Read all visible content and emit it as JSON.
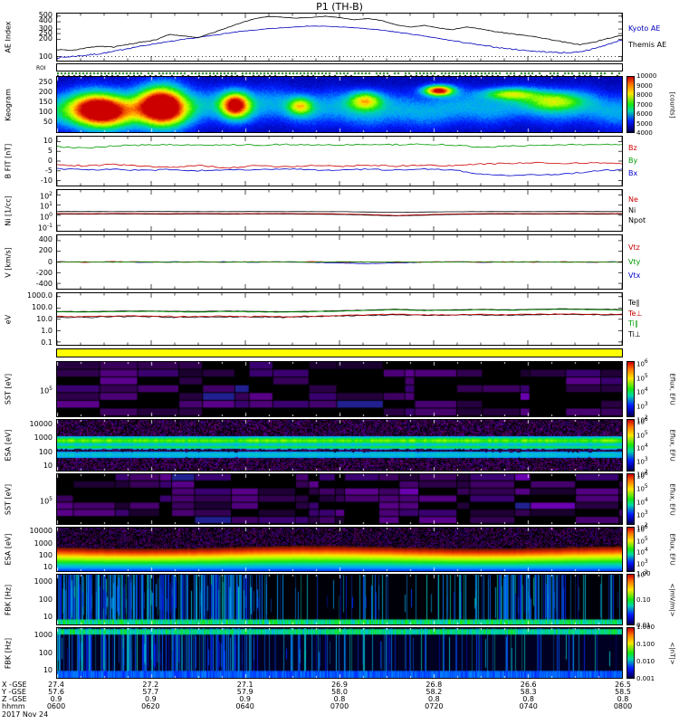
{
  "title": "P1 (TH-B)",
  "date_label": "2017 Nov 24",
  "x_axis": {
    "tick_labels": [
      "0600",
      "0620",
      "0640",
      "0700",
      "0720",
      "0740",
      "0800"
    ]
  },
  "ephemeris": {
    "rows": [
      {
        "label": "X -GSE",
        "values": [
          "27.4",
          "27.2",
          "27.1",
          "26.9",
          "26.8",
          "26.6",
          "26.5"
        ]
      },
      {
        "label": "Y -GSE",
        "values": [
          "57.6",
          "57.7",
          "57.9",
          "58.0",
          "58.2",
          "58.3",
          "58.5"
        ]
      },
      {
        "label": "Z -GSE",
        "values": [
          "0.9",
          "0.9",
          "0.9",
          "0.8",
          "0.8",
          "0.8",
          "0.8"
        ]
      },
      {
        "label": "hhmm",
        "values": [
          "0600",
          "0620",
          "0640",
          "0700",
          "0720",
          "0740",
          "0800"
        ]
      }
    ]
  },
  "chart_data": [
    {
      "id": "ae_index",
      "type": "line",
      "ylabel": "AE Index",
      "scale": "log",
      "ylim": [
        85,
        555
      ],
      "jitter": 6,
      "ref_lines": [
        100
      ],
      "yticks": [
        {
          "label": "500",
          "f": 0.055
        },
        {
          "label": "400",
          "f": 0.174
        },
        {
          "label": "300",
          "f": 0.328
        },
        {
          "label": "250",
          "f": 0.425
        },
        {
          "label": "200",
          "f": 0.544
        },
        {
          "label": "100",
          "f": 0.913
        }
      ],
      "right_labels": [
        {
          "text": "Kyoto AE",
          "color": "#0000bb"
        },
        {
          "text": "Themis AE",
          "color": "#000000"
        }
      ],
      "series": [
        {
          "name": "Kyoto AE",
          "color": "#0000bb",
          "values": [
            95,
            100,
            105,
            112,
            122,
            138,
            152,
            168,
            182,
            198,
            214,
            232,
            252,
            272,
            288,
            303,
            315,
            328,
            338,
            334,
            326,
            316,
            302,
            286,
            266,
            246,
            226,
            206,
            188,
            172,
            157,
            146,
            136,
            129,
            123,
            119,
            116,
            121,
            136,
            162,
            195
          ]
        },
        {
          "name": "Themis AE",
          "color": "#000000",
          "values": [
            132,
            126,
            141,
            151,
            146,
            162,
            177,
            196,
            242,
            226,
            211,
            256,
            312,
            382,
            452,
            496,
            481,
            462,
            476,
            500,
            471,
            432,
            456,
            421,
            352,
            322,
            346,
            312,
            291,
            326,
            301,
            271,
            251,
            236,
            216,
            196,
            176,
            161,
            176,
            206,
            231
          ]
        }
      ]
    },
    {
      "id": "roi",
      "type": "tick_strip",
      "ylabel": "ROI"
    },
    {
      "id": "keogram",
      "type": "spectrogram",
      "ylabel": "Keogram",
      "yticks": [
        {
          "label": "250",
          "f": 0.11
        },
        {
          "label": "200",
          "f": 0.285
        },
        {
          "label": "150",
          "f": 0.46
        },
        {
          "label": "100",
          "f": 0.64
        },
        {
          "label": "50",
          "f": 0.815
        }
      ],
      "colorbar": {
        "ticks": [
          "10000",
          "9000",
          "8000",
          "7000",
          "6000",
          "5000",
          "4000"
        ],
        "label": "[counts]"
      },
      "features": {
        "band": {
          "center": 0.56,
          "sigma": 0.3,
          "strength": 0.26
        },
        "blobs": [
          {
            "x": 0.075,
            "y": 0.6,
            "rx": 0.05,
            "ry": 0.3,
            "i": 0.95
          },
          {
            "x": 0.185,
            "y": 0.52,
            "rx": 0.04,
            "ry": 0.34,
            "i": 1.05
          },
          {
            "x": 0.315,
            "y": 0.5,
            "rx": 0.024,
            "ry": 0.22,
            "i": 0.8
          },
          {
            "x": 0.43,
            "y": 0.52,
            "rx": 0.02,
            "ry": 0.15,
            "i": 0.45
          },
          {
            "x": 0.545,
            "y": 0.42,
            "rx": 0.028,
            "ry": 0.16,
            "i": 0.55
          },
          {
            "x": 0.675,
            "y": 0.24,
            "rx": 0.025,
            "ry": 0.09,
            "i": 0.9
          },
          {
            "x": 0.8,
            "y": 0.3,
            "rx": 0.045,
            "ry": 0.1,
            "i": 0.45
          },
          {
            "x": 0.88,
            "y": 0.42,
            "rx": 0.045,
            "ry": 0.16,
            "i": 0.4
          }
        ]
      }
    },
    {
      "id": "b_fit",
      "type": "line",
      "ylabel": "B FIT [nT]",
      "scale": "linear",
      "ylim": [
        -12.5,
        12.5
      ],
      "jitter": 0.7,
      "yticks": [
        {
          "label": "10",
          "f": 0.1
        },
        {
          "label": "5",
          "f": 0.3
        },
        {
          "label": "0",
          "f": 0.5
        },
        {
          "label": "-5",
          "f": 0.7
        },
        {
          "label": "-10",
          "f": 0.9
        }
      ],
      "right_labels": [
        {
          "text": "Bz",
          "color": "#cc0000"
        },
        {
          "text": "By",
          "color": "#009900"
        },
        {
          "text": "Bx",
          "color": "#0000cc"
        }
      ],
      "series": [
        {
          "name": "Bx",
          "color": "#0000cc",
          "values": [
            -3.8,
            -4.6,
            -4.1,
            -4.8,
            -4.3,
            -4.9,
            -4.2,
            -4.6,
            -4.1,
            -4.4,
            -4.7,
            -4.2,
            -4.5,
            -4.1,
            -4.4,
            -6.6,
            -7.3,
            -7.0,
            -6.6,
            -5.2,
            -4.2
          ]
        },
        {
          "name": "Bz",
          "color": "#cc0000",
          "values": [
            -2.0,
            -2.4,
            -1.7,
            -2.6,
            -3.2,
            -2.2,
            -3.5,
            -2.4,
            -3.0,
            -2.3,
            -2.7,
            -2.1,
            -2.6,
            -1.9,
            -2.4,
            -1.5,
            -1.1,
            -0.8,
            -1.2,
            -0.9,
            -1.2
          ]
        },
        {
          "name": "By",
          "color": "#009900",
          "values": [
            7.4,
            6.6,
            7.8,
            8.2,
            8.4,
            8.1,
            8.4,
            8.2,
            8.5,
            8.3,
            8.2,
            8.5,
            8.4,
            8.6,
            8.3,
            7.0,
            7.6,
            8.1,
            8.3,
            8.5,
            8.3
          ]
        }
      ]
    },
    {
      "id": "density",
      "type": "line",
      "ylabel": "Ni [1/cc]",
      "scale": "log",
      "ylim": [
        0.03,
        300
      ],
      "jitter": 0.06,
      "yticks": [
        {
          "label": "10^2",
          "f": 0.119
        },
        {
          "label": "10^1",
          "f": 0.369
        },
        {
          "label": "10^0",
          "f": 0.619
        },
        {
          "label": "10^-1",
          "f": 0.869
        }
      ],
      "right_labels": [
        {
          "text": "Ne",
          "color": "#cc0000"
        },
        {
          "text": "Ni",
          "color": "#000000"
        },
        {
          "text": "Npot",
          "color": "#000000"
        }
      ],
      "series": [
        {
          "name": "Npot",
          "color": "#000000",
          "values": [
            2.3,
            2.32,
            2.28,
            2.31,
            2.33,
            2.3,
            2.29,
            2.32,
            2.3,
            2.28,
            2.25,
            2.1,
            1.95,
            2.08,
            2.22,
            2.29,
            2.31,
            2.29,
            2.32,
            2.3,
            2.31
          ]
        },
        {
          "name": "Ni",
          "color": "#000000",
          "values": [
            1.3,
            1.28,
            1.33,
            1.31,
            1.29,
            1.33,
            1.3,
            1.31,
            1.34,
            1.28,
            1.22,
            1.05,
            0.86,
            1.02,
            1.2,
            1.28,
            1.31,
            1.28,
            1.32,
            1.29,
            1.31
          ]
        },
        {
          "name": "Ne",
          "color": "#cc0000",
          "values": [
            1.46,
            1.43,
            1.49,
            1.47,
            1.45,
            1.49,
            1.46,
            1.47,
            1.5,
            1.43,
            1.37,
            1.18,
            0.97,
            1.15,
            1.35,
            1.43,
            1.47,
            1.43,
            1.48,
            1.45,
            1.47
          ]
        }
      ]
    },
    {
      "id": "velocity",
      "type": "line",
      "ylabel": "V [km/s]",
      "scale": "linear",
      "ylim": [
        -500,
        500
      ],
      "jitter": 9,
      "ref_lines": [
        0
      ],
      "yticks": [
        {
          "label": "400",
          "f": 0.1
        },
        {
          "label": "200",
          "f": 0.3
        },
        {
          "label": "0",
          "f": 0.5
        },
        {
          "label": "-200",
          "f": 0.7
        },
        {
          "label": "-400",
          "f": 0.9
        }
      ],
      "right_labels": [
        {
          "text": "Vtz",
          "color": "#cc0000"
        },
        {
          "text": "Vty",
          "color": "#009900"
        },
        {
          "text": "Vtx",
          "color": "#0000cc"
        }
      ],
      "series": [
        {
          "name": "Vtx",
          "color": "#0000cc",
          "values": [
            6,
            -4,
            3,
            -6,
            4,
            -2,
            5,
            -3,
            2,
            -5,
            -18,
            -32,
            -15,
            -4,
            3,
            -5,
            2,
            -4,
            3,
            -2,
            4
          ]
        },
        {
          "name": "Vtz",
          "color": "#cc0000",
          "values": [
            3,
            -4,
            6,
            2,
            -5,
            4,
            -3,
            6,
            -2,
            5,
            -4,
            3,
            -6,
            2,
            5,
            -3,
            4,
            -2,
            3,
            -5,
            2
          ]
        },
        {
          "name": "Vty",
          "color": "#009900",
          "values": [
            -3,
            5,
            -2,
            4,
            -6,
            3,
            -4,
            2,
            5,
            -3,
            4,
            -2,
            3,
            -5,
            2,
            4,
            -3,
            5,
            -2,
            3,
            -4
          ]
        }
      ]
    },
    {
      "id": "temperature",
      "type": "line",
      "ylabel": "eV",
      "scale": "log",
      "ylim": [
        0.056,
        2000
      ],
      "jitter": 4,
      "yticks": [
        {
          "label": "1000.0",
          "f": 0.066
        },
        {
          "label": "100.0",
          "f": 0.286
        },
        {
          "label": "10.0",
          "f": 0.505
        },
        {
          "label": "1.0",
          "f": 0.725
        },
        {
          "label": "0.1",
          "f": 0.945
        }
      ],
      "right_labels": [
        {
          "text": "Te∥",
          "color": "#000000"
        },
        {
          "text": "Te⊥",
          "color": "#cc0000"
        },
        {
          "text": "Ti∥",
          "color": "#009900"
        },
        {
          "text": "Ti⊥",
          "color": "#000000"
        }
      ],
      "series": [
        {
          "name": "Ti⊥",
          "color": "#000000",
          "values": [
            50,
            48,
            52,
            55,
            51,
            49,
            53,
            50,
            47,
            51,
            57,
            66,
            77,
            64,
            68,
            75,
            69,
            77,
            84,
            78,
            73
          ]
        },
        {
          "name": "Ti∥",
          "color": "#009900",
          "values": [
            45,
            43,
            47,
            50,
            46,
            44,
            48,
            45,
            42,
            46,
            52,
            60,
            70,
            58,
            62,
            68,
            63,
            70,
            76,
            71,
            66
          ]
        },
        {
          "name": "Te∥",
          "color": "#000000",
          "values": [
            16,
            15,
            17,
            18,
            16,
            15,
            17,
            16,
            15,
            17,
            20,
            22,
            25,
            22,
            23,
            24,
            23,
            25,
            27,
            25,
            24
          ]
        },
        {
          "name": "Te⊥",
          "color": "#cc0000",
          "values": [
            18,
            17,
            19,
            20,
            18,
            17,
            19,
            18,
            17,
            19,
            22,
            25,
            28,
            24,
            25,
            27,
            26,
            28,
            30,
            28,
            27
          ]
        }
      ]
    },
    {
      "id": "flag",
      "type": "flag",
      "color": "#ffff00"
    },
    {
      "id": "sst_e",
      "type": "spectrogram",
      "ylabel": "SST [eV]",
      "yticks": [
        {
          "label": "10^5",
          "f": 0.5
        }
      ],
      "colorbar": {
        "ticks": [
          "10^6",
          "10^5",
          "10^4",
          "10^3",
          "10^2"
        ],
        "label": "Eflux, EFU"
      },
      "features": {
        "fill_prob": 0.55,
        "rows": 7
      }
    },
    {
      "id": "esa_e",
      "type": "spectrogram",
      "ylabel": "ESA [eV]",
      "yticks": [
        {
          "label": "10000",
          "f": 0.1
        },
        {
          "label": "1000",
          "f": 0.37
        },
        {
          "label": "100",
          "f": 0.63
        },
        {
          "label": "10",
          "f": 0.89
        }
      ],
      "colorbar": {
        "ticks": [
          "10^6",
          "10^5",
          "10^4",
          "10^3",
          "10^2"
        ],
        "label": "Eflux, EFU"
      },
      "features": {
        "bands": [
          {
            "c": 0.4,
            "s": 0.075,
            "a": 0.62
          },
          {
            "c": 0.53,
            "s": 0.035,
            "a": 0.45
          },
          {
            "c": 0.68,
            "s": 0.08,
            "a": 0.28
          }
        ]
      }
    },
    {
      "id": "sst_i",
      "type": "spectrogram",
      "ylabel": "SST [eV]",
      "yticks": [
        {
          "label": "10^5",
          "f": 0.5
        }
      ],
      "colorbar": {
        "ticks": [
          "10^6",
          "10^5",
          "10^4",
          "10^3",
          "10^2"
        ],
        "label": "Eflux, EFU"
      },
      "features": {
        "fill_prob": 0.6,
        "rows": 7
      }
    },
    {
      "id": "esa_i",
      "type": "spectrogram",
      "ylabel": "ESA [eV]",
      "yticks": [
        {
          "label": "10000",
          "f": 0.1
        },
        {
          "label": "1000",
          "f": 0.37
        },
        {
          "label": "100",
          "f": 0.63
        },
        {
          "label": "10",
          "f": 0.89
        }
      ],
      "colorbar": {
        "ticks": [
          "10^6",
          "10^5",
          "10^4",
          "10^3",
          "10^2"
        ],
        "label": "Eflux, EFU"
      },
      "features": {
        "ramp_start": 0.44,
        "ramp_width": 0.09,
        "v_top": 0.95,
        "v_bottom": 0.2,
        "speckle_below": 0.45
      }
    },
    {
      "id": "fbk_e",
      "type": "spectrogram",
      "ylabel": "FBK [Hz]",
      "yticks": [
        {
          "label": "1000",
          "f": 0.15
        },
        {
          "label": "100",
          "f": 0.5
        },
        {
          "label": "10",
          "f": 0.85
        }
      ],
      "colorbar": {
        "ticks": [
          "1.00",
          "0.10",
          "0.01"
        ],
        "label": "<|mV/m|>"
      },
      "features": {
        "streaks": 420,
        "left_weight": 0.5,
        "clusters": [
          {
            "x0": 0.78,
            "x1": 0.9,
            "n": 60
          }
        ],
        "bands": [
          {
            "y0": 0.9,
            "y1": 1.0,
            "v": 0.48
          }
        ],
        "bg": "#000008"
      }
    },
    {
      "id": "fbk_b",
      "type": "spectrogram",
      "ylabel": "FBK [Hz]",
      "yticks": [
        {
          "label": "1000",
          "f": 0.15
        },
        {
          "label": "100",
          "f": 0.5
        },
        {
          "label": "10",
          "f": 0.85
        }
      ],
      "colorbar": {
        "ticks": [
          "1.000",
          "0.100",
          "0.010",
          "0.001"
        ],
        "label": "<|nT|>"
      },
      "features": {
        "streaks": 300,
        "left_weight": 0.4,
        "clusters": [],
        "bands": [
          {
            "y0": 0.02,
            "y1": 0.13,
            "v": 0.46
          },
          {
            "y0": 0.86,
            "y1": 1.0,
            "v": 0.26
          }
        ],
        "bg": "#000022"
      }
    }
  ]
}
